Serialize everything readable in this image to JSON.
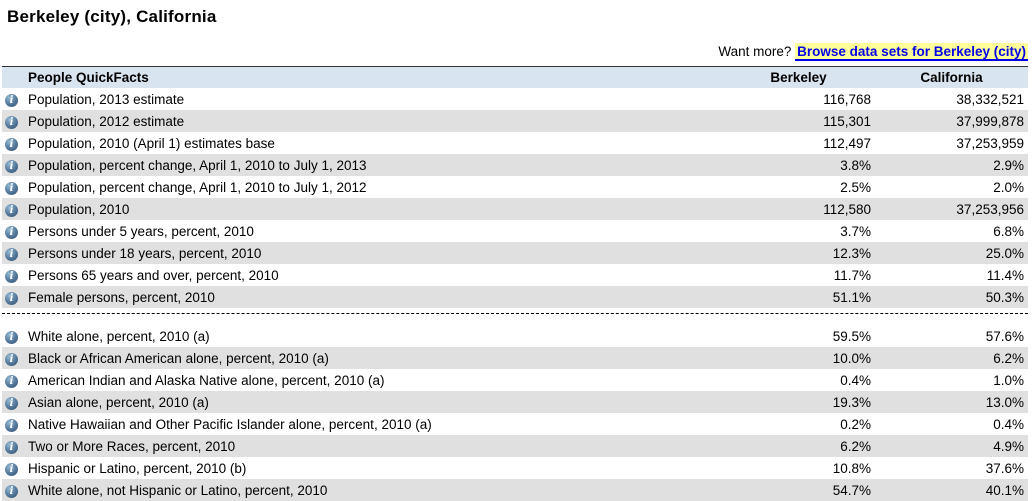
{
  "page": {
    "title": "Berkeley (city), California"
  },
  "want_more": {
    "prefix": "Want more? ",
    "link_label": "Browse data sets for Berkeley (city)"
  },
  "table": {
    "header": {
      "label": "People QuickFacts",
      "col1": "Berkeley",
      "col2": "California"
    },
    "separator_after": 9,
    "rows": [
      {
        "label": "Population, 2013 estimate",
        "berkeley": "116,768",
        "california": "38,332,521"
      },
      {
        "label": "Population, 2012 estimate",
        "berkeley": "115,301",
        "california": "37,999,878"
      },
      {
        "label": "Population, 2010 (April 1) estimates base",
        "berkeley": "112,497",
        "california": "37,253,959"
      },
      {
        "label": "Population, percent change, April 1, 2010 to July 1, 2013",
        "berkeley": "3.8%",
        "california": "2.9%"
      },
      {
        "label": "Population, percent change, April 1, 2010 to July 1, 2012",
        "berkeley": "2.5%",
        "california": "2.0%"
      },
      {
        "label": "Population, 2010",
        "berkeley": "112,580",
        "california": "37,253,956"
      },
      {
        "label": "Persons under 5 years, percent, 2010",
        "berkeley": "3.7%",
        "california": "6.8%"
      },
      {
        "label": "Persons under 18 years, percent, 2010",
        "berkeley": "12.3%",
        "california": "25.0%"
      },
      {
        "label": "Persons 65 years and over, percent, 2010",
        "berkeley": "11.7%",
        "california": "11.4%"
      },
      {
        "label": "Female persons, percent, 2010",
        "berkeley": "51.1%",
        "california": "50.3%"
      },
      {
        "label": "White alone, percent, 2010 (a)",
        "berkeley": "59.5%",
        "california": "57.6%"
      },
      {
        "label": "Black or African American alone, percent, 2010 (a)",
        "berkeley": "10.0%",
        "california": "6.2%"
      },
      {
        "label": "American Indian and Alaska Native alone, percent, 2010 (a)",
        "berkeley": "0.4%",
        "california": "1.0%"
      },
      {
        "label": "Asian alone, percent, 2010 (a)",
        "berkeley": "19.3%",
        "california": "13.0%"
      },
      {
        "label": "Native Hawaiian and Other Pacific Islander alone, percent, 2010 (a)",
        "berkeley": "0.2%",
        "california": "0.4%"
      },
      {
        "label": "Two or More Races, percent, 2010",
        "berkeley": "6.2%",
        "california": "4.9%"
      },
      {
        "label": "Hispanic or Latino, percent, 2010 (b)",
        "berkeley": "10.8%",
        "california": "37.6%"
      },
      {
        "label": "White alone, not Hispanic or Latino, percent, 2010",
        "berkeley": "54.7%",
        "california": "40.1%"
      }
    ]
  },
  "icons": {
    "info": "i"
  },
  "colors": {
    "link_blue": "#0000e6",
    "link_highlight": "#ffff99",
    "header_bg": "#d9e4f1",
    "row_stripe": "#e0e0e0",
    "info_icon_blue": "#47688b"
  }
}
